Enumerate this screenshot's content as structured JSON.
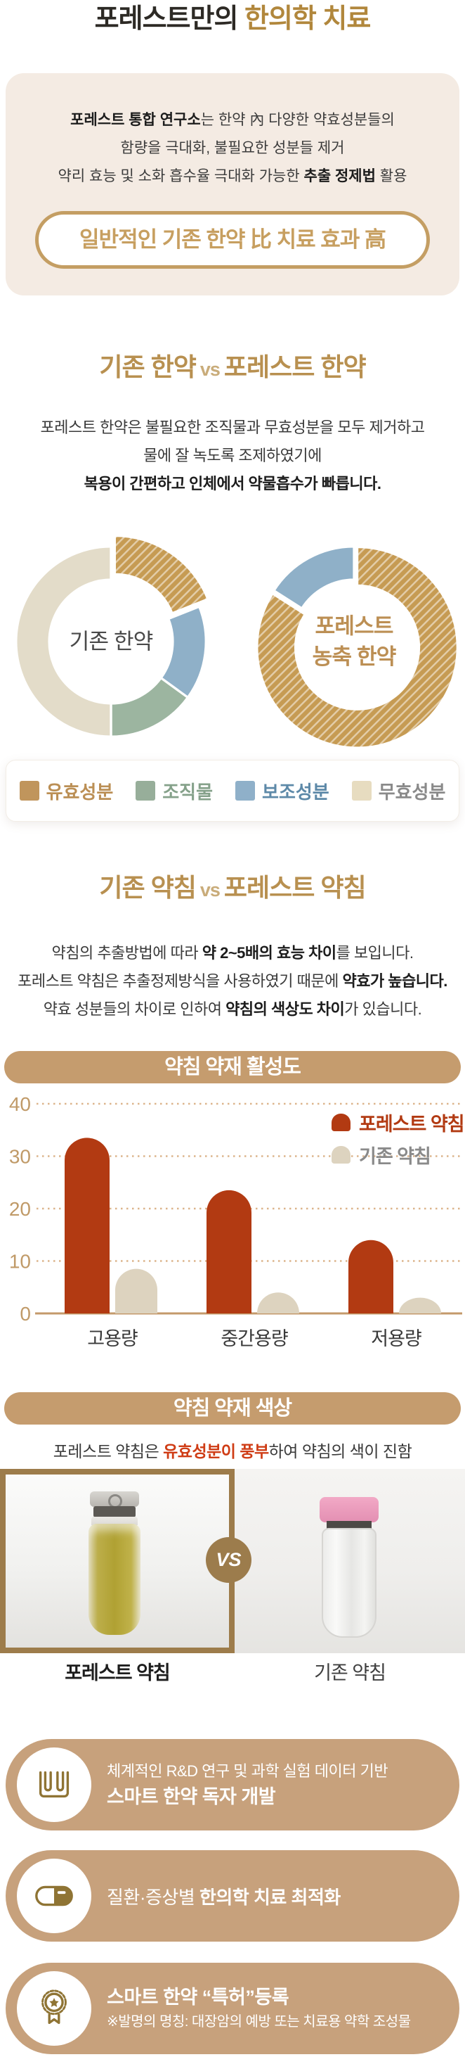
{
  "page": {
    "title": {
      "prefix": "포레스트만의 ",
      "accent": "한의학 치료"
    },
    "intro": {
      "line1_bold": "포레스트 통합 연구소",
      "line1_rest": "는 한약 內 다양한 약효성분들의",
      "line2": "함량을 극대화, 불필요한 성분들 제거",
      "line3_pre": "약리 효능 및 소화 흡수율 극대화 가능한 ",
      "line3_bold": "추출 정제법",
      "line3_post": " 활용",
      "badge": "일반적인 기존 한약 比 치료 효과 高"
    },
    "sec_hanyak": {
      "h_left": "기존 한약",
      "h_vs": "vs",
      "h_right": "포레스트 한약",
      "p1": "포레스트 한약은 불필요한 조직물과 무효성분을 모두 제거하고",
      "p2": "물에 잘 녹도록 조제하였기에",
      "p3_bold": "복용이 간편하고 인체에서 약물흡수가 빠릅니다."
    },
    "sec_yakchim": {
      "h_left": "기존 약침",
      "h_vs": "vs",
      "h_right": "포레스트 약침",
      "p1_pre": "약침의 추출방법에 따라 ",
      "p1_bold": "약 2~5배의 효능 차이",
      "p1_post": "를 보입니다.",
      "p2_pre": "포레스트 약침은 추출정제방식을 사용하였기 때문에 ",
      "p2_bold": "약효가 높습니다.",
      "p3_pre": "약효 성분들의 차이로 인하여 ",
      "p3_bold": "약침의 색상도 차이",
      "p3_post": "가 있습니다."
    },
    "banners": {
      "activity": "약침 약재 활성도",
      "color": "약침 약재 색상"
    },
    "color_note": {
      "pre": "포레스트 약침은 ",
      "red": "유효성분이 풍부",
      "post": "하여 약침의 색이 진함"
    },
    "vs_label": "VS",
    "photo_labels": {
      "left": "포레스트 약침",
      "right": "기존 약침"
    },
    "features": [
      {
        "icon": "test-tubes-icon",
        "line1": "체계적인 R&D 연구 및 과학 실험 데이터 기반",
        "line2": "스마트 한약 독자 개발"
      },
      {
        "icon": "capsule-icon",
        "line1_pre": "질환·증상별 ",
        "line1_bold": "한의학 치료 최적화"
      },
      {
        "icon": "medal-icon",
        "line1": "스마트 한약 “특허”등록",
        "line2": "※발명의 명칭: 대장암의 예방 또는 치료용 약학 조성물"
      }
    ]
  },
  "legend": {
    "items": [
      {
        "label": "유효성분",
        "color": "#c0955c",
        "text_color": "#bb8f55"
      },
      {
        "label": "조직물",
        "color": "#97ae9a",
        "text_color": "#85a18a"
      },
      {
        "label": "보조성분",
        "color": "#8fb0c9",
        "text_color": "#5d89a8"
      },
      {
        "label": "무효성분",
        "color": "#e7dcc0",
        "text_color": "#8a8a8a"
      }
    ]
  },
  "chart_data": [
    {
      "type": "pie",
      "variant": "donut",
      "title": "기존 한약",
      "center_lines": [
        "기존 한약"
      ],
      "center_color": "#4a4a4a",
      "center_bold": false,
      "segments": [
        {
          "label": "유효성분",
          "value": 19,
          "color": "#c69b53",
          "hatched": true,
          "exploded": true
        },
        {
          "label": "보조성분",
          "value": 16,
          "color": "#8fb0c8"
        },
        {
          "label": "조직물",
          "value": 15,
          "color": "#9cb5a0"
        },
        {
          "label": "무효성분",
          "value": 50,
          "color": "#e3dcc9"
        }
      ]
    },
    {
      "type": "pie",
      "variant": "donut",
      "title": "포레스트 농축 한약",
      "center_lines": [
        "포레스트",
        "농축 한약"
      ],
      "center_color": "#bc8f54",
      "center_bold": true,
      "segments": [
        {
          "label": "유효성분",
          "value": 84,
          "color": "#c69b53",
          "hatched": true,
          "exploded": true
        },
        {
          "label": "보조성분",
          "value": 16,
          "color": "#8fb0c8"
        }
      ]
    },
    {
      "type": "bar",
      "title": "약침 약재 활성도",
      "categories": [
        "고용량",
        "중간용량",
        "저용량"
      ],
      "series": [
        {
          "name": "포레스트 약침",
          "color": "#b23a12",
          "values": [
            33.5,
            23.5,
            14
          ]
        },
        {
          "name": "기존 약침",
          "color": "#ddd3bf",
          "values": [
            8.5,
            4,
            3
          ]
        }
      ],
      "ylim": [
        0,
        40
      ],
      "yticks": [
        0,
        10,
        20,
        30,
        40
      ],
      "grid": "dotted",
      "legend_position": "top-right",
      "axis_color": "#c49a6b",
      "tick_label_color": "#c09a68",
      "grid_color": "#dcb48b"
    }
  ],
  "colors": {
    "accent_gold": "#b1873c",
    "heading_gold": "#b89050",
    "badge_gold": "#c49e63",
    "panel_bg": "#f4ebe3",
    "banner_bg": "#c59c6e",
    "feature_bg": "#c7a17c",
    "icon_gold": "#8f7434",
    "bar_red": "#b23a12",
    "bar_beige": "#ddd3bf",
    "vs_circle": "#9c7c4c",
    "note_red": "#cf3c15"
  }
}
